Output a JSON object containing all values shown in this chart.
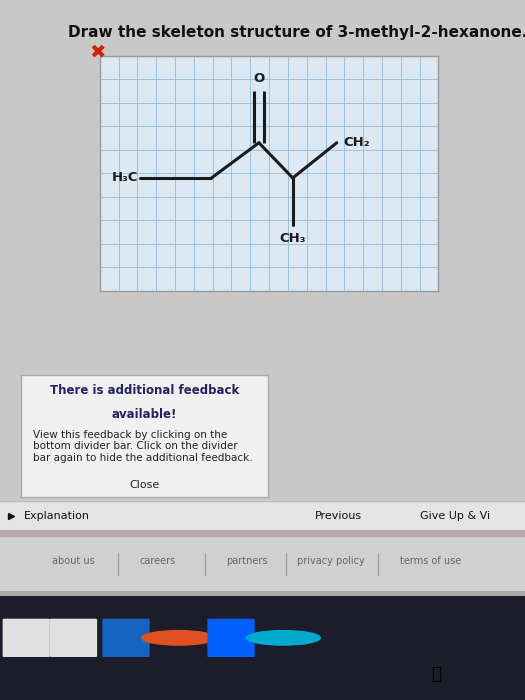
{
  "title": "Draw the skeleton structure of 3-methyl-2-hexanone.",
  "title_fontsize": 11,
  "title_color": "#111111",
  "bg_color": "#c8c8c8",
  "grid_color": "#8ab8d8",
  "grid_area_bg": "#dce8f2",
  "grid_border_color": "#999999",
  "molecule_color": "#1a1a1a",
  "feedback_box_color": "#222266",
  "feedback_title_line1": "There is additional feedback",
  "feedback_title_line2": "available!",
  "feedback_body": "View this feedback by clicking on the\nbottom divider bar. Click on the divider\nbar again to hide the additional feedback.",
  "feedback_close": "Close",
  "nav_previous": "Previous",
  "nav_giveup": "Give Up & Vi",
  "explanation": "Explanation",
  "footer_links": [
    "about us",
    "careers",
    "partners",
    "privacy policy",
    "terms of use"
  ],
  "x_mark_color": "#cc2200",
  "n_cols": 18,
  "n_rows": 10,
  "lw": 2.2
}
